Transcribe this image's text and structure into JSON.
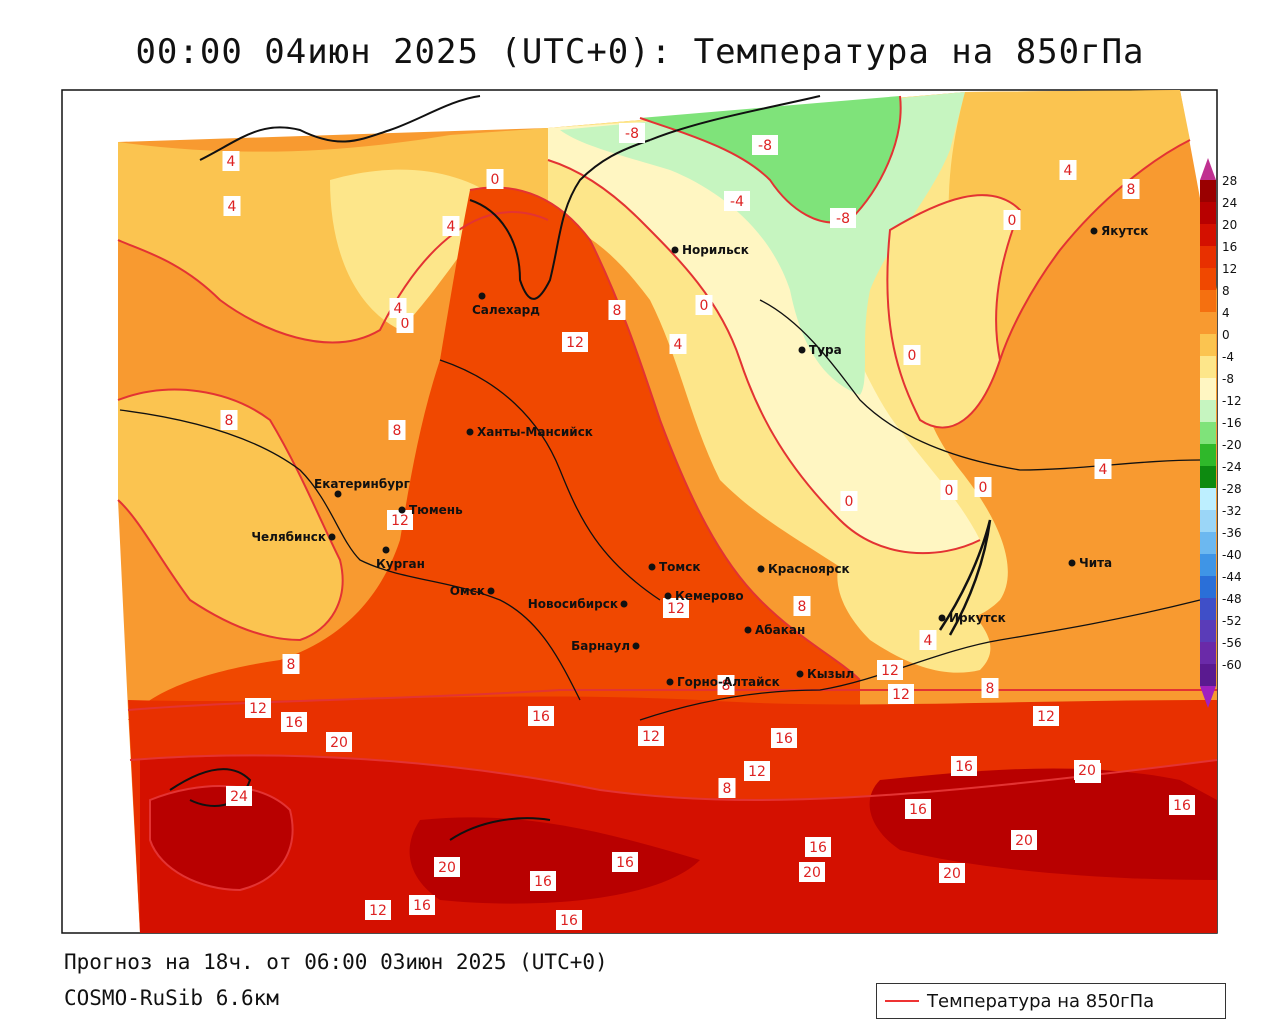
{
  "header": {
    "title": "00:00 04июн 2025 (UTC+0): Температура на 850гПа"
  },
  "footer": {
    "forecast": "Прогноз на 18ч. от 06:00 03июн 2025 (UTC+0)",
    "model": "COSMO-RuSib 6.6км",
    "legend_label": "Температура на 850гПа"
  },
  "colors": {
    "isoline": "#e33333",
    "land_outline": "#111111",
    "ocean": "#ffffff"
  },
  "scale": {
    "ticks": [
      "28",
      "24",
      "20",
      "16",
      "12",
      "8",
      "4",
      "0",
      "-4",
      "-8",
      "-12",
      "-16",
      "-20",
      "-24",
      "-28",
      "-32",
      "-36",
      "-40",
      "-44",
      "-48",
      "-52",
      "-56",
      "-60"
    ],
    "colors": [
      "#9a0000",
      "#b80000",
      "#d41000",
      "#e83000",
      "#f04800",
      "#f57010",
      "#f89a30",
      "#fbc450",
      "#fde68a",
      "#fff6c2",
      "#c6f5c0",
      "#7fe37a",
      "#2fb82a",
      "#0d8a10",
      "#bdefff",
      "#9bd6f7",
      "#6cb8f0",
      "#3f95e6",
      "#2a6fd8",
      "#3f4fc8",
      "#5a3cb8",
      "#6a2aa8",
      "#5a1a90"
    ]
  },
  "cities": [
    {
      "name": "Норильск"
    },
    {
      "name": "Салехард"
    },
    {
      "name": "Тура"
    },
    {
      "name": "Якутск"
    },
    {
      "name": "Ханты-Мансийск"
    },
    {
      "name": "Екатеринбург"
    },
    {
      "name": "Тюмень"
    },
    {
      "name": "Челябинск"
    },
    {
      "name": "Курган"
    },
    {
      "name": "Омск"
    },
    {
      "name": "Новосибирск"
    },
    {
      "name": "Томск"
    },
    {
      "name": "Кемерово"
    },
    {
      "name": "Красноярск"
    },
    {
      "name": "Барнаул"
    },
    {
      "name": "Абакан"
    },
    {
      "name": "Горно-Алтайск"
    },
    {
      "name": "Кызыл"
    },
    {
      "name": "Иркутск"
    },
    {
      "name": "Чита"
    }
  ],
  "isoline_labels": [
    "-8",
    "-8",
    "-4",
    "-8",
    "4",
    "4",
    "4",
    "0",
    "4",
    "0",
    "8",
    "0",
    "8",
    "12",
    "4",
    "0",
    "8",
    "8",
    "0",
    "0",
    "4",
    "0",
    "12",
    "12",
    "8",
    "12",
    "8",
    "8",
    "12",
    "16",
    "12",
    "16",
    "20",
    "24",
    "16",
    "20",
    "16",
    "8",
    "12",
    "16",
    "16",
    "12",
    "16",
    "20",
    "16",
    "20",
    "20",
    "20",
    "16",
    "16",
    "12",
    "16",
    "12",
    "20",
    "8",
    "4",
    "0",
    "4"
  ]
}
